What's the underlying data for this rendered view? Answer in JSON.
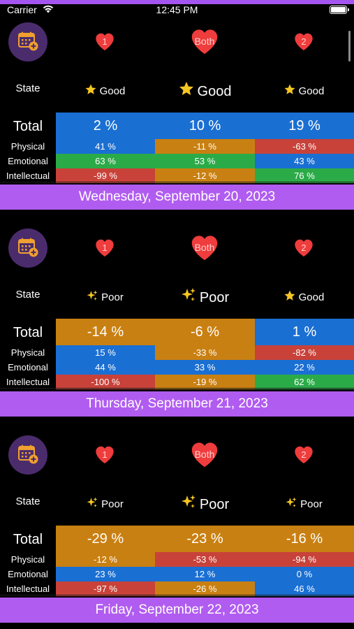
{
  "status_bar": {
    "carrier": "Carrier",
    "time": "12:45 PM"
  },
  "colors": {
    "good": "#1a6fd3",
    "neutral": "#c98012",
    "bad": "#c8423a",
    "great": "#2bab48",
    "banner": "#b15cf0",
    "heart": "#ef3c3c"
  },
  "days": [
    {
      "hearts": [
        "1",
        "Both",
        "2"
      ],
      "state_label": "State",
      "states": [
        {
          "icon": "star-icon",
          "text": "Good"
        },
        {
          "icon": "star-icon",
          "text": "Good"
        },
        {
          "icon": "star-icon",
          "text": "Good"
        }
      ],
      "rows": [
        {
          "label": "Total",
          "cells": [
            {
              "value": "2 %",
              "tone": "good"
            },
            {
              "value": "10 %",
              "tone": "good"
            },
            {
              "value": "19 %",
              "tone": "good"
            }
          ]
        },
        {
          "label": "Physical",
          "cells": [
            {
              "value": "41 %",
              "tone": "good"
            },
            {
              "value": "-11 %",
              "tone": "neutral"
            },
            {
              "value": "-63 %",
              "tone": "bad"
            }
          ]
        },
        {
          "label": "Emotional",
          "cells": [
            {
              "value": "63 %",
              "tone": "great"
            },
            {
              "value": "53 %",
              "tone": "great"
            },
            {
              "value": "43 %",
              "tone": "good"
            }
          ]
        },
        {
          "label": "Intellectual",
          "cells": [
            {
              "value": "-99 %",
              "tone": "bad"
            },
            {
              "value": "-12 %",
              "tone": "neutral"
            },
            {
              "value": "76 %",
              "tone": "great"
            }
          ]
        }
      ],
      "date": "Wednesday, September 20, 2023"
    },
    {
      "hearts": [
        "1",
        "Both",
        "2"
      ],
      "state_label": "State",
      "states": [
        {
          "icon": "sparkles-icon",
          "text": "Poor"
        },
        {
          "icon": "sparkles-icon",
          "text": "Poor"
        },
        {
          "icon": "star-icon",
          "text": "Good"
        }
      ],
      "rows": [
        {
          "label": "Total",
          "cells": [
            {
              "value": "-14 %",
              "tone": "neutral"
            },
            {
              "value": "-6 %",
              "tone": "neutral"
            },
            {
              "value": "1 %",
              "tone": "good"
            }
          ]
        },
        {
          "label": "Physical",
          "cells": [
            {
              "value": "15 %",
              "tone": "good"
            },
            {
              "value": "-33 %",
              "tone": "neutral"
            },
            {
              "value": "-82 %",
              "tone": "bad"
            }
          ]
        },
        {
          "label": "Emotional",
          "cells": [
            {
              "value": "44 %",
              "tone": "good"
            },
            {
              "value": "33 %",
              "tone": "good"
            },
            {
              "value": "22 %",
              "tone": "good"
            }
          ]
        },
        {
          "label": "Intellectual",
          "cells": [
            {
              "value": "-100 %",
              "tone": "bad"
            },
            {
              "value": "-19 %",
              "tone": "neutral"
            },
            {
              "value": "62 %",
              "tone": "great"
            }
          ]
        }
      ],
      "date": "Thursday, September 21, 2023"
    },
    {
      "hearts": [
        "1",
        "Both",
        "2"
      ],
      "state_label": "State",
      "states": [
        {
          "icon": "sparkles-icon",
          "text": "Poor"
        },
        {
          "icon": "sparkles-icon",
          "text": "Poor"
        },
        {
          "icon": "sparkles-icon",
          "text": "Poor"
        }
      ],
      "rows": [
        {
          "label": "Total",
          "cells": [
            {
              "value": "-29 %",
              "tone": "neutral"
            },
            {
              "value": "-23 %",
              "tone": "neutral"
            },
            {
              "value": "-16 %",
              "tone": "neutral"
            }
          ]
        },
        {
          "label": "Physical",
          "cells": [
            {
              "value": "-12 %",
              "tone": "neutral"
            },
            {
              "value": "-53 %",
              "tone": "bad"
            },
            {
              "value": "-94 %",
              "tone": "bad"
            }
          ]
        },
        {
          "label": "Emotional",
          "cells": [
            {
              "value": "23 %",
              "tone": "good"
            },
            {
              "value": "12 %",
              "tone": "good"
            },
            {
              "value": "0 %",
              "tone": "good"
            }
          ]
        },
        {
          "label": "Intellectual",
          "cells": [
            {
              "value": "-97 %",
              "tone": "bad"
            },
            {
              "value": "-26 %",
              "tone": "neutral"
            },
            {
              "value": "46 %",
              "tone": "good"
            }
          ]
        }
      ],
      "date": "Friday, September 22, 2023"
    }
  ]
}
